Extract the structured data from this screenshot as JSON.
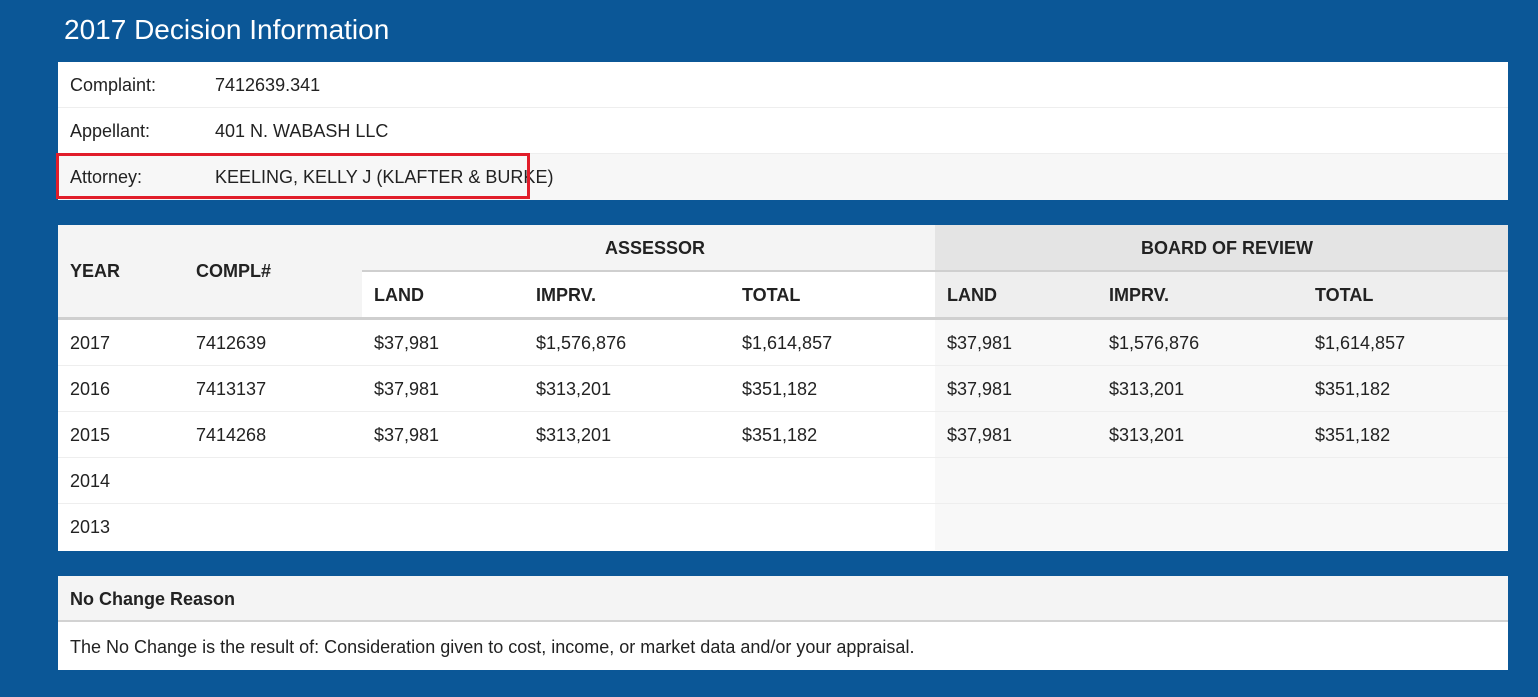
{
  "page": {
    "title": "2017 Decision Information"
  },
  "info": {
    "complaint_label": "Complaint:",
    "complaint_value": "7412639.341",
    "appellant_label": "Appellant:",
    "appellant_value": "401 N. WABASH LLC",
    "attorney_label": "Attorney:",
    "attorney_value": "KEELING, KELLY J (KLAFTER & BURKE)"
  },
  "table": {
    "year_header": "YEAR",
    "compl_header": "COMPL#",
    "assessor_header": "ASSESSOR",
    "bor_header": "BOARD OF REVIEW",
    "sub_headers": [
      "LAND",
      "IMPRV.",
      "TOTAL",
      "LAND",
      "IMPRV.",
      "TOTAL"
    ],
    "rows": [
      {
        "year": "2017",
        "compl": "7412639",
        "a_land": "$37,981",
        "a_imprv": "$1,576,876",
        "a_total": "$1,614,857",
        "b_land": "$37,981",
        "b_imprv": "$1,576,876",
        "b_total": "$1,614,857"
      },
      {
        "year": "2016",
        "compl": "7413137",
        "a_land": "$37,981",
        "a_imprv": "$313,201",
        "a_total": "$351,182",
        "b_land": "$37,981",
        "b_imprv": "$313,201",
        "b_total": "$351,182"
      },
      {
        "year": "2015",
        "compl": "7414268",
        "a_land": "$37,981",
        "a_imprv": "$313,201",
        "a_total": "$351,182",
        "b_land": "$37,981",
        "b_imprv": "$313,201",
        "b_total": "$351,182"
      },
      {
        "year": "2014",
        "compl": "",
        "a_land": "",
        "a_imprv": "",
        "a_total": "",
        "b_land": "",
        "b_imprv": "",
        "b_total": ""
      },
      {
        "year": "2013",
        "compl": "",
        "a_land": "",
        "a_imprv": "",
        "a_total": "",
        "b_land": "",
        "b_imprv": "",
        "b_total": ""
      }
    ]
  },
  "reason": {
    "header": "No Change Reason",
    "text": "The No Change is the result of: Consideration given to cost, income, or market data and/or your appraisal."
  },
  "colors": {
    "background": "#0b5797",
    "highlight": "#e11d2a"
  }
}
